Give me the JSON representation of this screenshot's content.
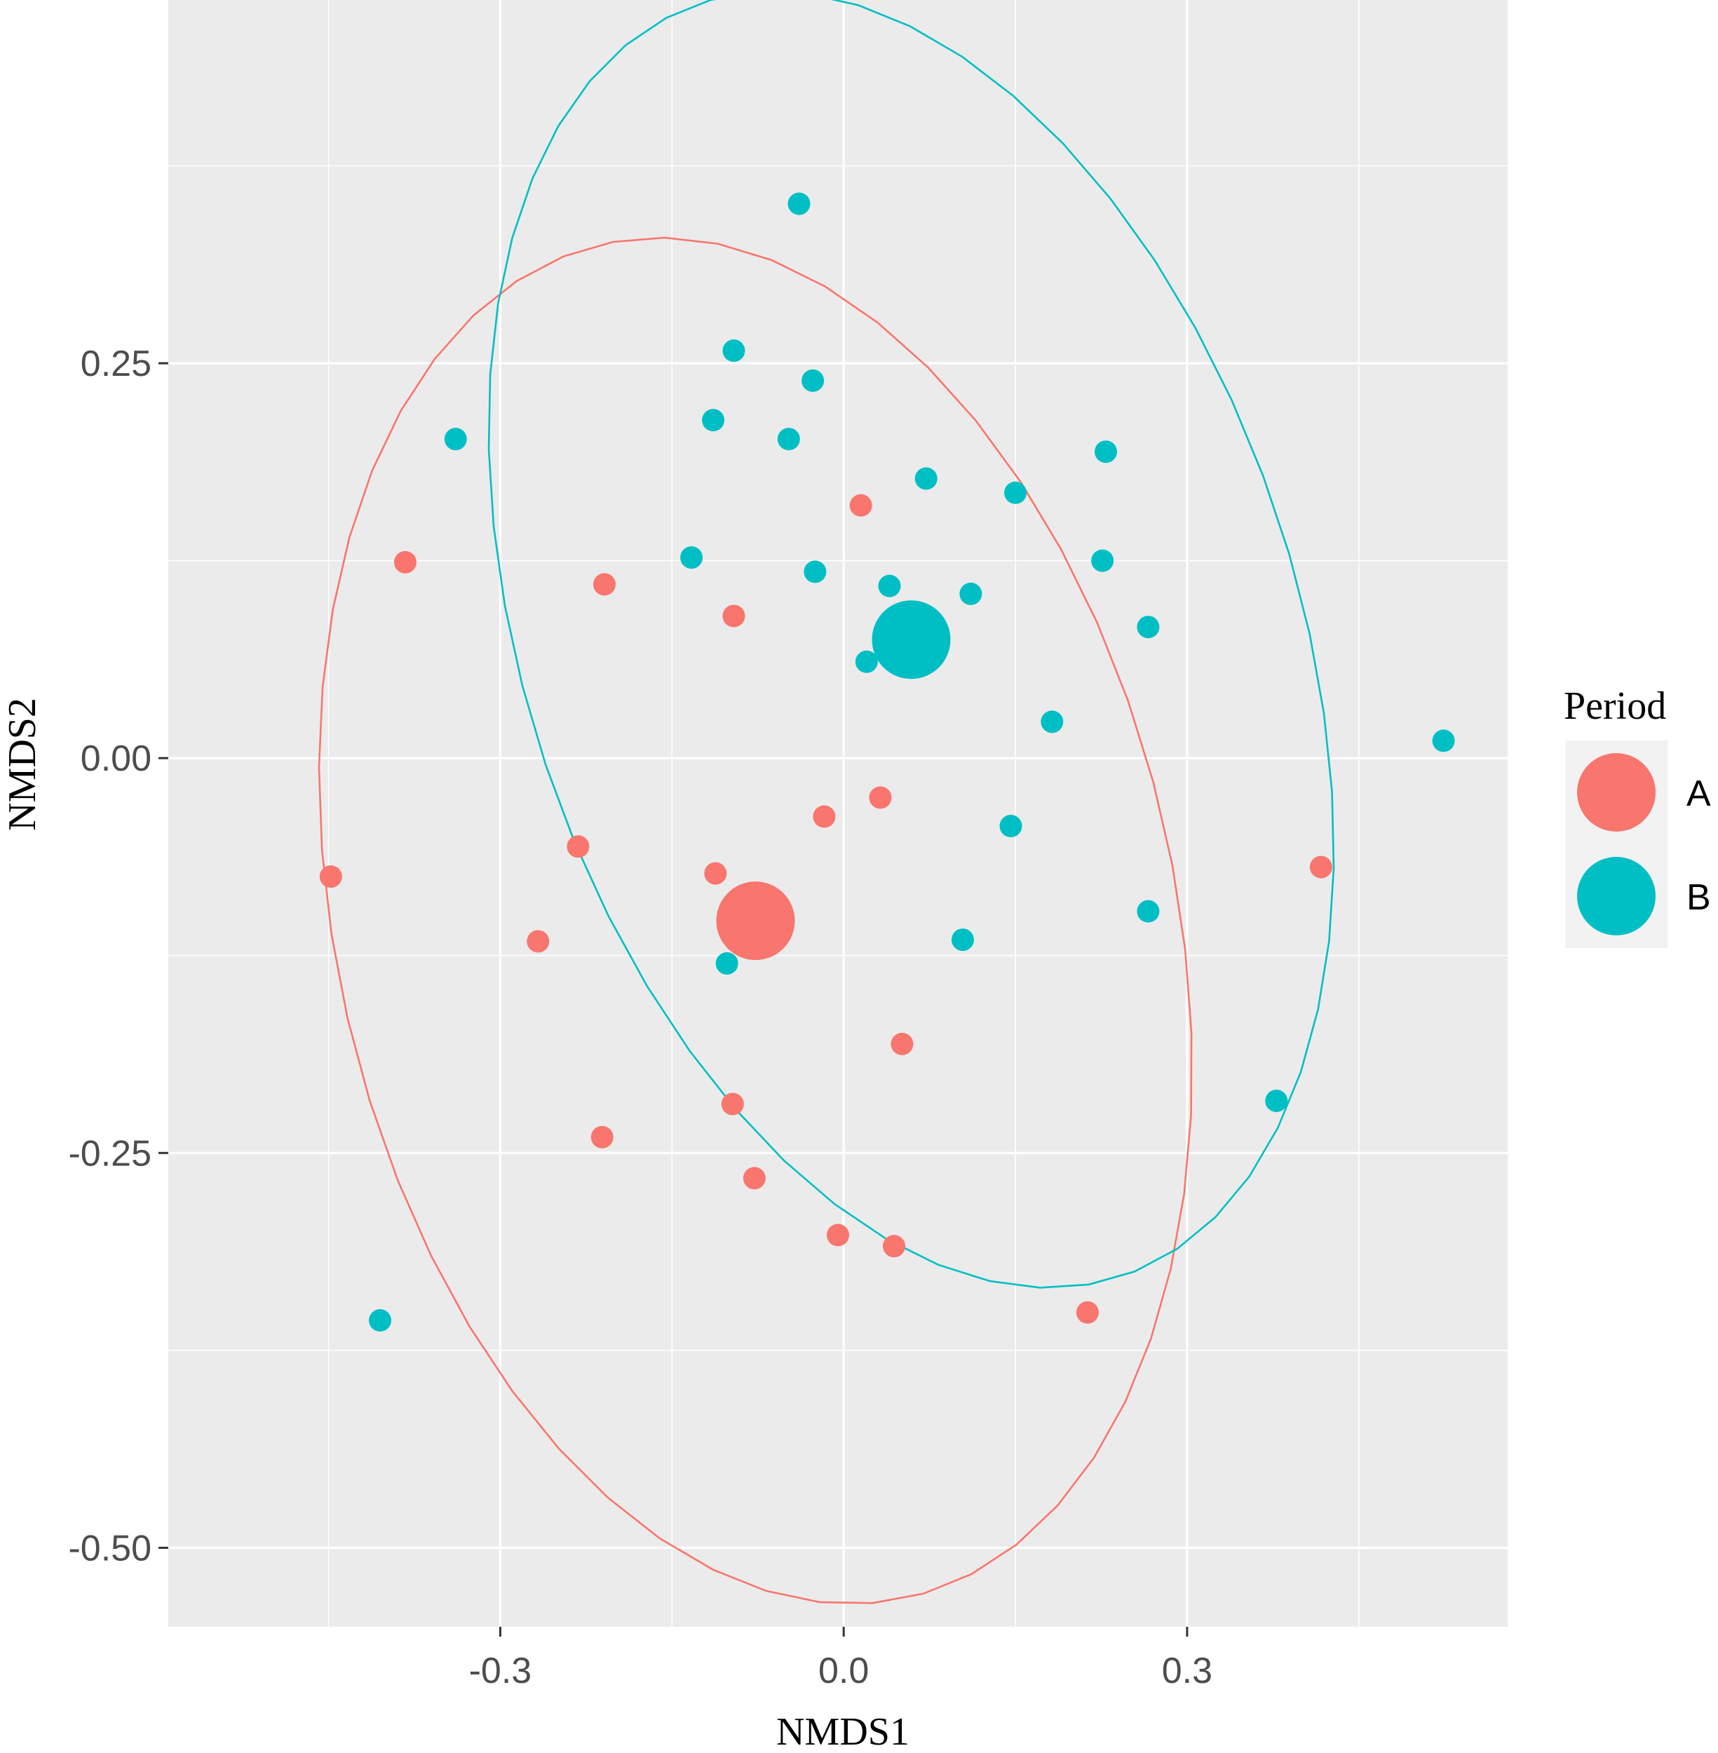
{
  "chart_data": {
    "type": "scatter",
    "xlabel": "NMDS1",
    "ylabel": "NMDS2",
    "xlim": [
      -0.59,
      0.58
    ],
    "ylim": [
      -0.55,
      0.48
    ],
    "x_ticks": [
      -0.3,
      0.0,
      0.3
    ],
    "x_tick_labels": [
      "-0.3",
      "0.0",
      "0.3"
    ],
    "y_ticks": [
      -0.5,
      -0.25,
      0.0,
      0.25
    ],
    "y_tick_labels": [
      "-0.50",
      "-0.25",
      "0.00",
      "0.25"
    ],
    "grid": true,
    "legend": {
      "title": "Period",
      "position": "right",
      "entries": [
        {
          "label": "A",
          "color": "#F8766D"
        },
        {
          "label": "B",
          "color": "#00BFC4"
        }
      ]
    },
    "series": [
      {
        "name": "A",
        "color": "#F8766D",
        "centroid": {
          "x": -0.077,
          "y": -0.103
        },
        "points": [
          {
            "x": 0.015,
            "y": 0.16
          },
          {
            "x": -0.383,
            "y": 0.124
          },
          {
            "x": -0.209,
            "y": 0.11
          },
          {
            "x": -0.096,
            "y": 0.09
          },
          {
            "x": 0.032,
            "y": -0.025
          },
          {
            "x": -0.017,
            "y": -0.037
          },
          {
            "x": -0.232,
            "y": -0.056
          },
          {
            "x": -0.448,
            "y": -0.075
          },
          {
            "x": -0.112,
            "y": -0.073
          },
          {
            "x": 0.417,
            "y": -0.069
          },
          {
            "x": -0.267,
            "y": -0.116
          },
          {
            "x": 0.051,
            "y": -0.181
          },
          {
            "x": -0.097,
            "y": -0.219
          },
          {
            "x": -0.211,
            "y": -0.24
          },
          {
            "x": -0.078,
            "y": -0.266
          },
          {
            "x": -0.005,
            "y": -0.302
          },
          {
            "x": 0.044,
            "y": -0.309
          },
          {
            "x": 0.213,
            "y": -0.351
          }
        ],
        "ellipse": {
          "cx": -0.077,
          "cy": -0.103,
          "angle_deg": -60,
          "a": 0.456,
          "b": 0.353
        }
      },
      {
        "name": "B",
        "color": "#00BFC4",
        "centroid": {
          "x": 0.059,
          "y": 0.075
        },
        "points": [
          {
            "x": -0.039,
            "y": 0.351
          },
          {
            "x": -0.096,
            "y": 0.258
          },
          {
            "x": -0.027,
            "y": 0.239
          },
          {
            "x": -0.114,
            "y": 0.214
          },
          {
            "x": -0.339,
            "y": 0.202
          },
          {
            "x": -0.048,
            "y": 0.202
          },
          {
            "x": 0.229,
            "y": 0.194
          },
          {
            "x": 0.072,
            "y": 0.177
          },
          {
            "x": 0.15,
            "y": 0.168
          },
          {
            "x": -0.133,
            "y": 0.127
          },
          {
            "x": 0.226,
            "y": 0.125
          },
          {
            "x": -0.025,
            "y": 0.118
          },
          {
            "x": 0.04,
            "y": 0.109
          },
          {
            "x": 0.111,
            "y": 0.104
          },
          {
            "x": 0.266,
            "y": 0.083
          },
          {
            "x": 0.02,
            "y": 0.061
          },
          {
            "x": 0.182,
            "y": 0.023
          },
          {
            "x": 0.524,
            "y": 0.011
          },
          {
            "x": 0.146,
            "y": -0.043
          },
          {
            "x": 0.266,
            "y": -0.097
          },
          {
            "x": 0.104,
            "y": -0.115
          },
          {
            "x": -0.102,
            "y": -0.13
          },
          {
            "x": 0.378,
            "y": -0.217
          },
          {
            "x": -0.405,
            "y": -0.356
          }
        ],
        "ellipse": {
          "cx": 0.059,
          "cy": 0.075,
          "angle_deg": -54,
          "a": 0.452,
          "b": 0.317
        }
      }
    ]
  }
}
